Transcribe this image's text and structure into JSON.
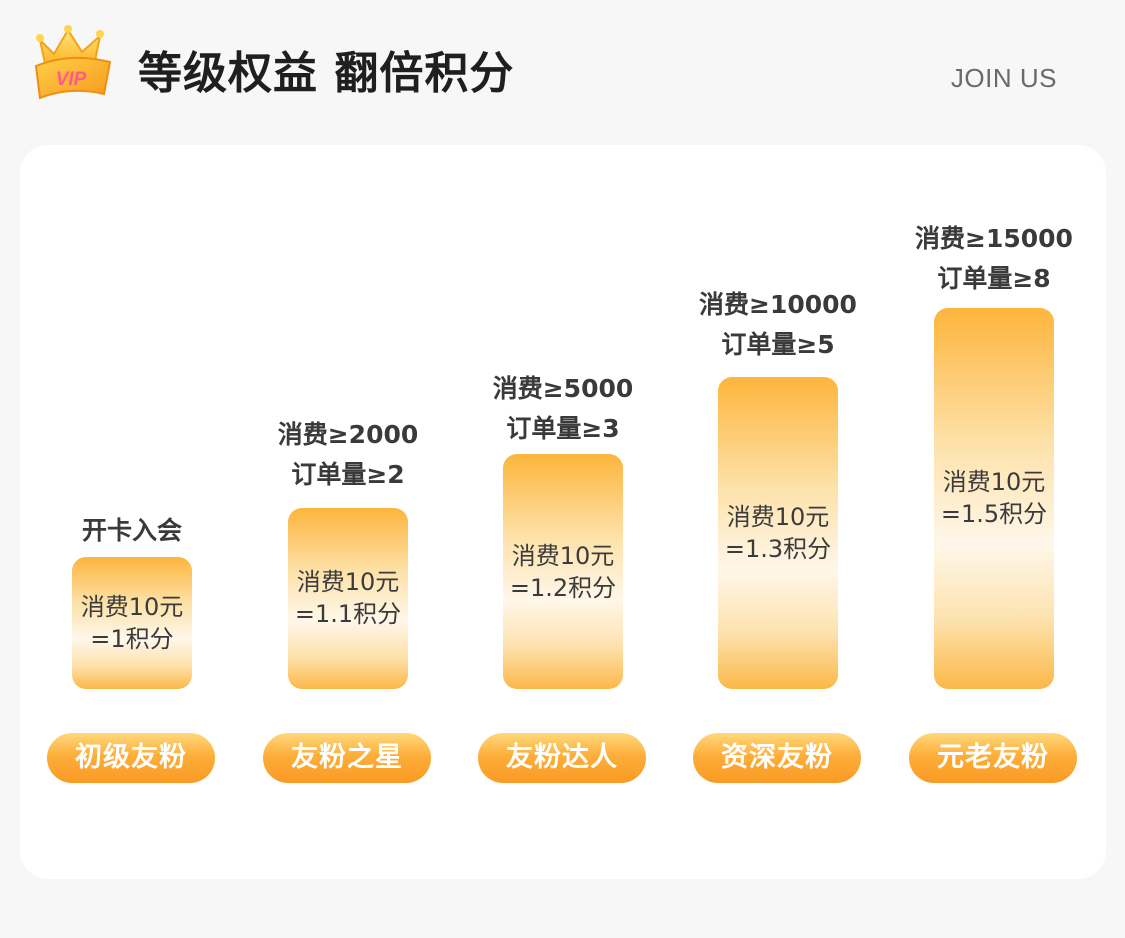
{
  "header": {
    "title": "等级权益 翻倍积分",
    "join_label": "JOIN US",
    "badge_text": "VIP"
  },
  "tiers": [
    {
      "requirement_lines": [
        "开卡入会"
      ],
      "rate_lines": [
        "消费10元",
        "=1积分"
      ],
      "name": "初级友粉"
    },
    {
      "requirement_lines": [
        "消费≥2000",
        "订单量≥2"
      ],
      "rate_lines": [
        "消费10元",
        "=1.1积分"
      ],
      "name": "友粉之星"
    },
    {
      "requirement_lines": [
        "消费≥5000",
        "订单量≥3"
      ],
      "rate_lines": [
        "消费10元",
        "=1.2积分"
      ],
      "name": "友粉达人"
    },
    {
      "requirement_lines": [
        "消费≥10000",
        "订单量≥5"
      ],
      "rate_lines": [
        "消费10元",
        "=1.3积分"
      ],
      "name": "资深友粉"
    },
    {
      "requirement_lines": [
        "消费≥15000",
        "订单量≥8"
      ],
      "rate_lines": [
        "消费10元",
        "=1.5积分"
      ],
      "name": "元老友粉"
    }
  ],
  "colors": {
    "accent_orange": "#f99a24",
    "accent_light": "#ffd87c",
    "page_bg": "#f7f7f7",
    "card_bg": "#ffffff"
  }
}
